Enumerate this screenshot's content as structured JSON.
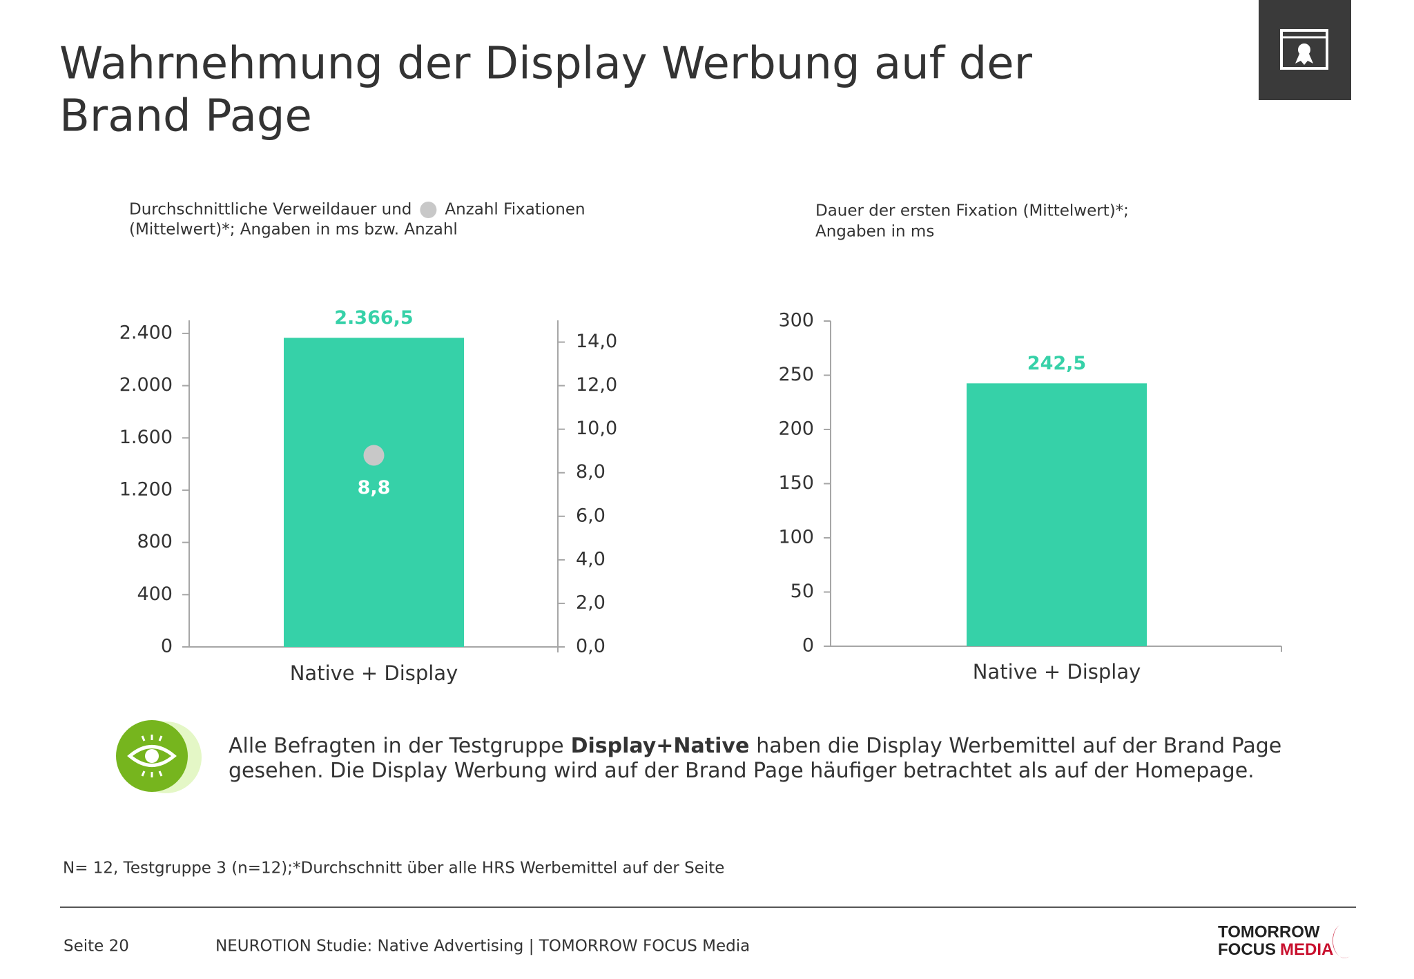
{
  "title": [
    "Wahrnehmung der Display Werbung auf der",
    "Brand Page"
  ],
  "chart_data": [
    {
      "type": "bar",
      "subtitle": [
        [
          "Durchschnittliche Verweildauer und",
          "Anzahl Fixationen"
        ],
        "(Mittelwert)*; Angaben in ms bzw. Anzahl"
      ],
      "categories": [
        "Native + Display"
      ],
      "series": [
        {
          "color": "#36d1a8",
          "values": [
            2366.5
          ],
          "value_labels": [
            "2.366,5"
          ]
        },
        {
          "type": "scatter",
          "axis": "y2",
          "color": "#c8c8c8",
          "values": [
            8.8
          ],
          "value_labels": [
            "8,8"
          ]
        }
      ],
      "ylim": [
        0,
        2500
      ],
      "yticks": [
        0,
        400,
        800,
        {
          "value": 1200,
          "label": "1.200"
        },
        {
          "value": 1600,
          "label": "1.600"
        },
        {
          "value": 2000,
          "label": "2.000"
        },
        {
          "value": 2400,
          "label": "2.400"
        }
      ],
      "y2lim": [
        0,
        15
      ],
      "y2ticks": [
        {
          "value": 0,
          "label": "0,0"
        },
        {
          "value": 2,
          "label": "2,0"
        },
        {
          "value": 4,
          "label": "4,0"
        },
        {
          "value": 6,
          "label": "6,0"
        },
        {
          "value": 8,
          "label": "8,0"
        },
        {
          "value": 10,
          "label": "10,0"
        },
        {
          "value": 12,
          "label": "12,0"
        },
        {
          "value": 14,
          "label": "14,0"
        }
      ],
      "grid": false
    },
    {
      "type": "bar",
      "subtitle": [
        "Dauer der ersten Fixation (Mittelwert)*;",
        "Angaben in ms"
      ],
      "categories": [
        "Native + Display"
      ],
      "series": [
        {
          "color": "#36d1a8",
          "values": [
            242.5
          ],
          "value_labels": [
            "242,5"
          ]
        }
      ],
      "ylim": [
        0,
        300
      ],
      "yticks": [
        0,
        50,
        100,
        150,
        200,
        250,
        300
      ],
      "grid": false
    }
  ],
  "body": [
    [
      "Alle Befragten in der Testgruppe",
      "Display+Native",
      "haben die Display Werbemittel auf der Brand Page"
    ],
    [
      "gesehen. Die Display Werbung wird auf der Brand Page häufiger betrachtet als auf der Homepage."
    ]
  ],
  "footnote": "N= 12, Testgruppe 3 (n=12);*Durchschnitt über alle HRS Werbemittel auf der Seite",
  "footer": {
    "page": "Seite 20",
    "source": "NEUROTION Studie: Native Advertising | TOMORROW FOCUS Media"
  },
  "logo": {
    "line1": "TOMORROW",
    "line2": [
      "FOCUS",
      "MEDIA"
    ]
  }
}
